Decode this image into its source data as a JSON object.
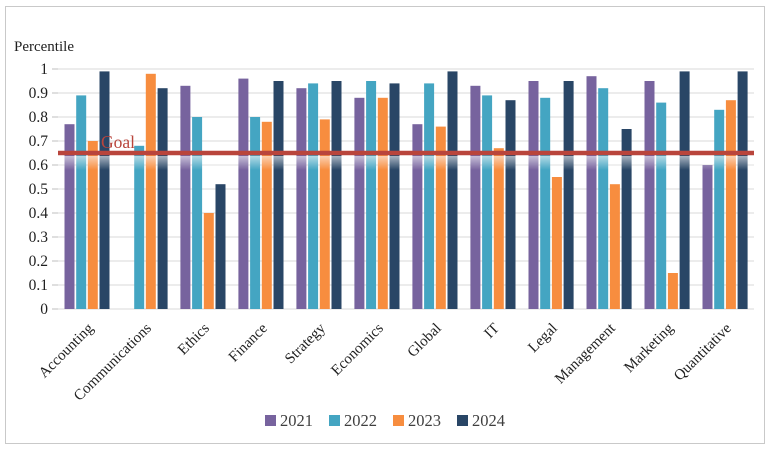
{
  "chart": {
    "y_axis_title": "Percentile",
    "goal": {
      "label": "Goal",
      "value": 0.65,
      "color": "#b9453c"
    },
    "y_tick_labels": [
      "1",
      "0.9",
      "0.8",
      "0.7",
      "0.6",
      "0.5",
      "0.4",
      "0.3",
      "0.2",
      "0.1",
      "0"
    ],
    "colors": {
      "gridline": "#d9d9d9",
      "axis_text": "#1f1f1f",
      "legend_text": "#3f3f3f",
      "frame_border": "#c9c9c9",
      "background": "#ffffff"
    }
  },
  "chart_data": {
    "type": "bar",
    "title": "",
    "xlabel": "",
    "ylabel": "Percentile",
    "ylim": [
      0,
      1
    ],
    "y_step": 0.1,
    "grid": true,
    "legend_position": "bottom",
    "annotation": {
      "text": "Goal",
      "y": 0.65
    },
    "categories": [
      "Accounting",
      "Communications",
      "Ethics",
      "Finance",
      "Strategy",
      "Economics",
      "Global",
      "IT",
      "Legal",
      "Management",
      "Marketing",
      "Quantitative"
    ],
    "series": [
      {
        "name": "2021",
        "color": "#77639e",
        "values": [
          0.77,
          null,
          0.93,
          0.96,
          0.92,
          0.88,
          0.77,
          0.93,
          0.95,
          0.97,
          0.95,
          0.6
        ]
      },
      {
        "name": "2022",
        "color": "#44a5c2",
        "values": [
          0.89,
          0.68,
          0.8,
          0.8,
          0.94,
          0.95,
          0.94,
          0.89,
          0.88,
          0.92,
          0.86,
          0.83
        ]
      },
      {
        "name": "2023",
        "color": "#f78d3f",
        "values": [
          0.7,
          0.98,
          0.4,
          0.78,
          0.79,
          0.88,
          0.76,
          0.67,
          0.55,
          0.52,
          0.15,
          0.87
        ]
      },
      {
        "name": "2024",
        "color": "#294666",
        "values": [
          0.99,
          0.92,
          0.52,
          0.95,
          0.95,
          0.94,
          0.99,
          0.87,
          0.95,
          0.75,
          0.99,
          0.99
        ]
      }
    ]
  }
}
